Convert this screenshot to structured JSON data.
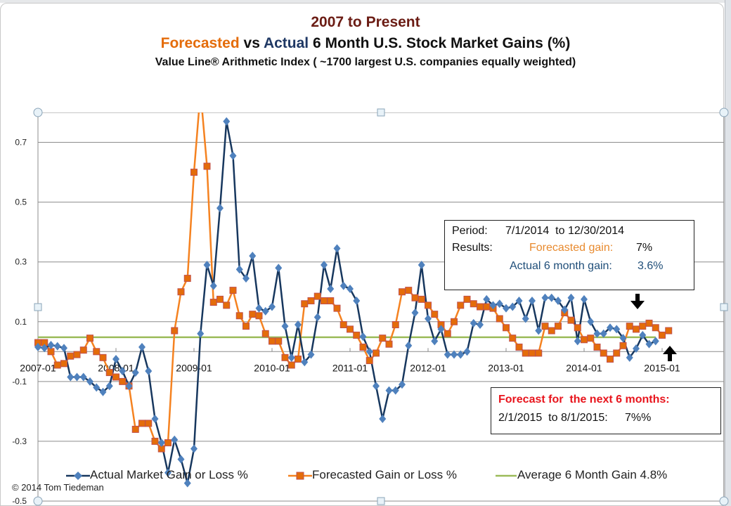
{
  "titles": {
    "line1": "2007 to Present",
    "line2_forecast": "Forecasted",
    "line2_vs": " vs ",
    "line2_actual": "Actual",
    "line2_rest": " 6 Month U.S. Stock Market Gains (%)",
    "line3": "Value Line® Arithmetic Index ( ~1700  largest U.S. companies equally weighted)"
  },
  "results_box": {
    "period_label": "Period:",
    "period_value": "7/1/2014  to 12/30/2014",
    "results_label": "Results:",
    "forecast_label": "Forecasted gain:",
    "forecast_value": "7%",
    "actual_label": "Actual 6 month gain:",
    "actual_value": "3.6%"
  },
  "forecast_box": {
    "heading": "Forecast for  the next 6 months:",
    "period": "2/1/2015  to 8/1/2015:",
    "value": "7%%"
  },
  "copyright": "© 2014 Tom Tiedeman",
  "chart_data": {
    "type": "line",
    "title": "Forecasted vs Actual 6 Month U.S. Stock Market Gains (%)",
    "xlabel": "",
    "ylabel": "",
    "ylim": [
      -0.5,
      0.8
    ],
    "yticks": [
      -0.5,
      -0.3,
      -0.1,
      0.1,
      0.3,
      0.5,
      0.7
    ],
    "ytick_labels": [
      "-0.5",
      "-0.3",
      "-0.1",
      "0.1",
      "0.3",
      "0.5",
      "0.7"
    ],
    "xtick_labels": [
      "2007-01",
      "2008-01",
      "2009-01",
      "2010-01",
      "2011-01",
      "2012-01",
      "2013-01",
      "2014-01",
      "2015-01"
    ],
    "x_start": "2007-01",
    "x_unit": "month",
    "grid": true,
    "legend_position": "bottom",
    "series": [
      {
        "name": "Actual Market Gain or Loss %",
        "color": "#17375e",
        "marker": "diamond",
        "marker_color": "#4f81bd",
        "values": [
          0.015,
          0.012,
          0.022,
          0.018,
          0.012,
          -0.085,
          -0.085,
          -0.085,
          -0.1,
          -0.12,
          -0.135,
          -0.115,
          -0.025,
          -0.065,
          -0.115,
          -0.07,
          0.015,
          -0.065,
          -0.225,
          -0.305,
          -0.405,
          -0.295,
          -0.36,
          -0.44,
          -0.325,
          0.06,
          0.29,
          0.22,
          0.48,
          0.77,
          0.655,
          0.275,
          0.245,
          0.32,
          0.145,
          0.135,
          0.15,
          0.28,
          0.085,
          -0.02,
          0.09,
          -0.035,
          -0.01,
          0.115,
          0.29,
          0.21,
          0.345,
          0.22,
          0.21,
          0.17,
          0.05,
          0.0,
          -0.115,
          -0.225,
          -0.13,
          -0.13,
          -0.11,
          0.02,
          0.13,
          0.29,
          0.11,
          0.035,
          0.075,
          -0.01,
          -0.01,
          -0.01,
          0.0,
          0.095,
          0.09,
          0.175,
          0.155,
          0.16,
          0.145,
          0.15,
          0.17,
          0.11,
          0.17,
          0.07,
          0.18,
          0.18,
          0.17,
          0.14,
          0.18,
          0.035,
          0.175,
          0.1,
          0.06,
          0.06,
          0.08,
          0.075,
          0.045,
          -0.02,
          0.01,
          0.055,
          0.025,
          0.035
        ]
      },
      {
        "name": "Forecasted Gain or Loss %",
        "color": "#f58220",
        "marker": "square",
        "marker_color": "#e46c0a",
        "values": [
          0.03,
          0.03,
          0.0,
          -0.045,
          -0.04,
          -0.015,
          -0.01,
          0.005,
          0.045,
          0.0,
          -0.02,
          -0.07,
          -0.085,
          -0.1,
          -0.115,
          -0.26,
          -0.24,
          -0.24,
          -0.3,
          -0.325,
          -0.305,
          0.07,
          0.2,
          0.245,
          0.6,
          0.87,
          0.62,
          0.165,
          0.175,
          0.155,
          0.205,
          0.12,
          0.085,
          0.125,
          0.12,
          0.06,
          0.035,
          0.035,
          -0.02,
          -0.045,
          -0.025,
          0.16,
          0.17,
          0.185,
          0.17,
          0.17,
          0.145,
          0.09,
          0.075,
          0.055,
          0.015,
          -0.03,
          -0.005,
          0.045,
          0.025,
          0.09,
          0.2,
          0.205,
          0.18,
          0.175,
          0.155,
          0.125,
          0.09,
          0.06,
          0.1,
          0.155,
          0.175,
          0.16,
          0.15,
          0.15,
          0.145,
          0.11,
          0.08,
          0.045,
          0.015,
          -0.005,
          -0.005,
          -0.005,
          0.085,
          0.07,
          0.085,
          0.13,
          0.105,
          0.08,
          0.04,
          0.045,
          0.015,
          -0.005,
          -0.025,
          -0.005,
          0.02,
          0.085,
          0.075,
          0.085,
          0.095,
          0.08,
          0.055,
          0.07
        ]
      },
      {
        "name": "Average 6 Month Gain 4.8%",
        "color": "#9bbb59",
        "marker": "none",
        "constant": 0.048,
        "x_range": [
          "2007-01",
          "2014-12"
        ]
      }
    ],
    "annotations": [
      {
        "type": "arrow-down",
        "near": "2014-07"
      },
      {
        "type": "arrow-up",
        "near": "2014-12"
      }
    ]
  }
}
